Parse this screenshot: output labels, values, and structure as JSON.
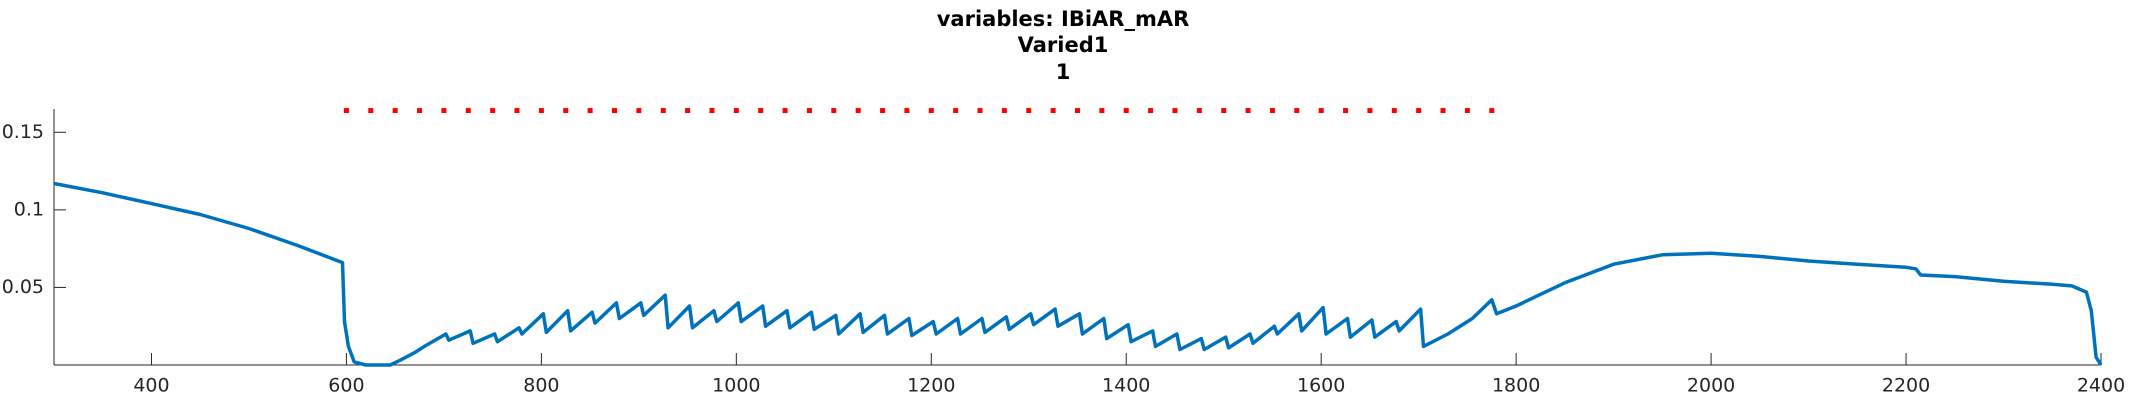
{
  "chart_data": {
    "type": "line",
    "title": "variables: IBiAR_mAR",
    "subtitle": [
      "Varied1",
      "1"
    ],
    "xlim": [
      300,
      2400
    ],
    "xticks": [
      400,
      600,
      800,
      1000,
      1200,
      1400,
      1600,
      1800,
      2000,
      2200,
      2400
    ],
    "ylim": [
      0,
      0.165
    ],
    "yticks": [
      0.05,
      0.1,
      0.15
    ],
    "series": [
      {
        "color": "#0072bd",
        "style": "solid",
        "x": [
          300,
          350,
          400,
          450,
          500,
          550,
          596,
          598,
          602,
          608,
          620,
          645,
          655,
          670,
          680,
          702,
          705,
          727,
          730,
          752,
          755,
          777,
          780,
          802,
          805,
          827,
          830,
          852,
          855,
          877,
          880,
          902,
          905,
          927,
          930,
          952,
          955,
          977,
          980,
          1002,
          1005,
          1027,
          1030,
          1052,
          1055,
          1077,
          1080,
          1102,
          1105,
          1127,
          1130,
          1152,
          1155,
          1177,
          1180,
          1202,
          1205,
          1227,
          1230,
          1252,
          1255,
          1277,
          1280,
          1302,
          1305,
          1327,
          1330,
          1352,
          1355,
          1377,
          1380,
          1402,
          1405,
          1427,
          1430,
          1452,
          1455,
          1477,
          1480,
          1502,
          1505,
          1527,
          1530,
          1552,
          1555,
          1577,
          1580,
          1602,
          1605,
          1627,
          1630,
          1652,
          1655,
          1677,
          1680,
          1702,
          1705,
          1730,
          1755,
          1775,
          1780,
          1800,
          1850,
          1900,
          1950,
          2000,
          2050,
          2100,
          2150,
          2200,
          2210,
          2215,
          2250,
          2300,
          2350,
          2370,
          2385,
          2390,
          2395,
          2400
        ],
        "values": [
          0.117,
          0.111,
          0.104,
          0.097,
          0.088,
          0.077,
          0.066,
          0.028,
          0.012,
          0.002,
          0,
          0,
          0.003,
          0.008,
          0.012,
          0.02,
          0.016,
          0.022,
          0.014,
          0.02,
          0.015,
          0.024,
          0.02,
          0.033,
          0.021,
          0.035,
          0.022,
          0.034,
          0.027,
          0.04,
          0.03,
          0.04,
          0.032,
          0.045,
          0.024,
          0.038,
          0.024,
          0.035,
          0.028,
          0.04,
          0.028,
          0.038,
          0.025,
          0.035,
          0.024,
          0.034,
          0.023,
          0.032,
          0.02,
          0.033,
          0.021,
          0.032,
          0.02,
          0.03,
          0.019,
          0.028,
          0.02,
          0.03,
          0.02,
          0.03,
          0.021,
          0.031,
          0.023,
          0.033,
          0.026,
          0.036,
          0.025,
          0.033,
          0.02,
          0.03,
          0.017,
          0.026,
          0.015,
          0.022,
          0.012,
          0.02,
          0.01,
          0.017,
          0.01,
          0.018,
          0.011,
          0.02,
          0.014,
          0.025,
          0.02,
          0.033,
          0.022,
          0.037,
          0.02,
          0.03,
          0.018,
          0.029,
          0.018,
          0.028,
          0.022,
          0.036,
          0.012,
          0.02,
          0.03,
          0.042,
          0.033,
          0.038,
          0.053,
          0.065,
          0.071,
          0.072,
          0.07,
          0.067,
          0.065,
          0.063,
          0.062,
          0.058,
          0.057,
          0.054,
          0.052,
          0.051,
          0.047,
          0.035,
          0.005,
          0
        ]
      },
      {
        "color": "#ff0000",
        "style": "dotted",
        "x": [
          600,
          625,
          650,
          675,
          700,
          725,
          750,
          775,
          800,
          825,
          850,
          875,
          900,
          925,
          950,
          975,
          1000,
          1025,
          1050,
          1075,
          1100,
          1125,
          1150,
          1175,
          1200,
          1225,
          1250,
          1275,
          1300,
          1325,
          1350,
          1375,
          1400,
          1425,
          1450,
          1475,
          1500,
          1525,
          1550,
          1575,
          1600,
          1625,
          1650,
          1675,
          1700,
          1725,
          1750,
          1775
        ],
        "values": [
          0.164,
          0.164,
          0.164,
          0.164,
          0.164,
          0.164,
          0.164,
          0.164,
          0.164,
          0.164,
          0.164,
          0.164,
          0.164,
          0.164,
          0.164,
          0.164,
          0.164,
          0.164,
          0.164,
          0.164,
          0.164,
          0.164,
          0.164,
          0.164,
          0.164,
          0.164,
          0.164,
          0.164,
          0.164,
          0.164,
          0.164,
          0.164,
          0.164,
          0.164,
          0.164,
          0.164,
          0.164,
          0.164,
          0.164,
          0.164,
          0.164,
          0.164,
          0.164,
          0.164,
          0.164,
          0.164,
          0.164,
          0.164
        ]
      }
    ]
  }
}
